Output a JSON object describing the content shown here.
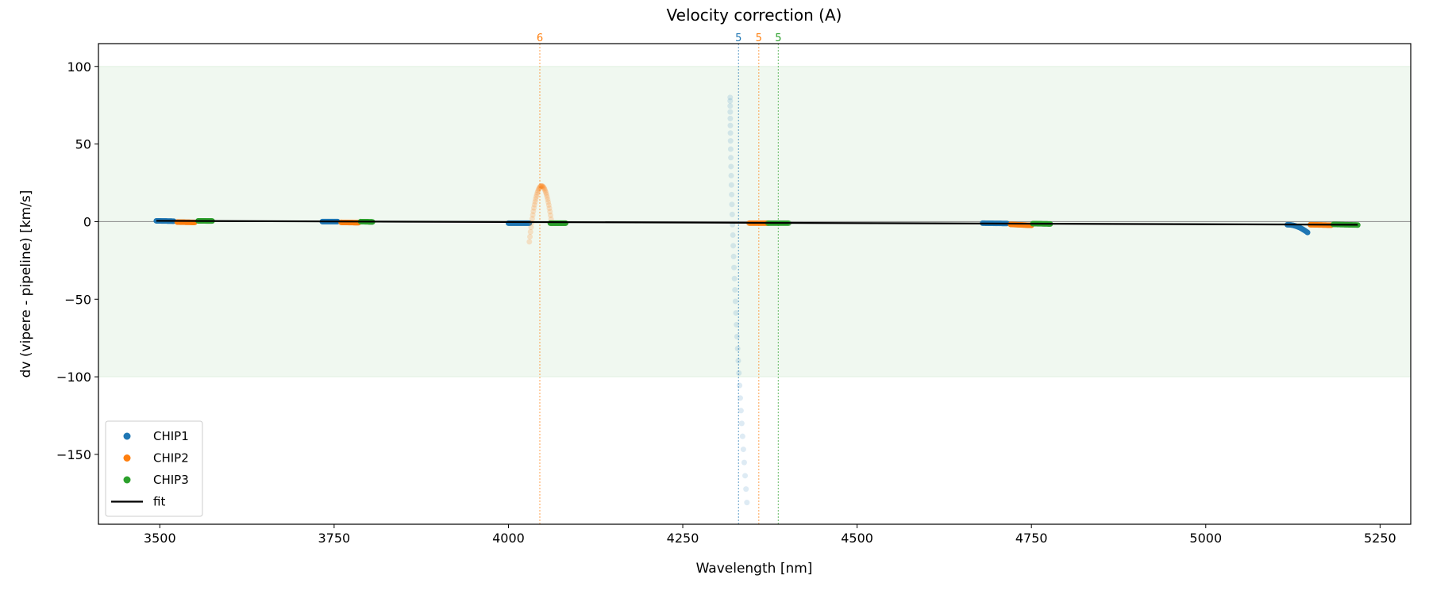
{
  "chart_data": {
    "type": "scatter",
    "title": "Velocity correction (A)",
    "xlabel": "Wavelength [nm]",
    "ylabel": "dv (vipere - pipeline) [km/s]",
    "xlim": [
      3412,
      5294
    ],
    "ylim": [
      -195,
      114.7
    ],
    "xticks": [
      3500,
      3750,
      4000,
      4250,
      4500,
      4750,
      5000,
      5250
    ],
    "yticks": [
      100,
      50,
      0,
      -50,
      -100,
      -150
    ],
    "tick_labels_x": [
      "3500",
      "3750",
      "4000",
      "4250",
      "4500",
      "4750",
      "5000",
      "5250"
    ],
    "tick_labels_y": [
      "100",
      "50",
      "0",
      "−50",
      "−100",
      "−150"
    ],
    "band": [
      -100,
      100
    ],
    "band_color": "#2ca02c",
    "legend": {
      "placement": "lower-left",
      "entries": [
        "CHIP1",
        "CHIP2",
        "CHIP3",
        "fit"
      ]
    },
    "series": [
      {
        "name": "CHIP1",
        "color": "#1f77b4",
        "segments": [
          {
            "x": [
              3495,
              3520
            ],
            "y": [
              0.5,
              0.3
            ],
            "alpha": 1
          },
          {
            "x": [
              3733,
              3755
            ],
            "y": [
              0,
              0
            ],
            "alpha": 1
          },
          {
            "x": [
              4000,
              4030
            ],
            "y": [
              -1,
              -1
            ],
            "alpha": 1
          },
          {
            "x": [
              4318,
              4342
            ],
            "y": [
              80,
              -181
            ],
            "alpha": 0.15,
            "shape": "dip"
          },
          {
            "x": [
              4680,
              4715
            ],
            "y": [
              -1,
              -1.2
            ],
            "alpha": 1
          },
          {
            "x": [
              5117,
              5146
            ],
            "y": [
              -2,
              -7
            ],
            "alpha": 1,
            "shape": "curve-down"
          }
        ]
      },
      {
        "name": "CHIP2",
        "color": "#ff7f0e",
        "segments": [
          {
            "x": [
              3525,
              3550
            ],
            "y": [
              -0.3,
              -0.5
            ],
            "alpha": 1
          },
          {
            "x": [
              3760,
              3785
            ],
            "y": [
              -0.5,
              -0.7
            ],
            "alpha": 1
          },
          {
            "x": [
              4030,
              4062
            ],
            "y": [
              -13,
              23
            ],
            "alpha": 0.2,
            "shape": "arc"
          },
          {
            "x": [
              4345,
              4372
            ],
            "y": [
              -1,
              -1
            ],
            "alpha": 0.6
          },
          {
            "x": [
              4720,
              4750
            ],
            "y": [
              -1.8,
              -2.4
            ],
            "alpha": 1
          },
          {
            "x": [
              5150,
              5180
            ],
            "y": [
              -2,
              -2.3
            ],
            "alpha": 1
          }
        ]
      },
      {
        "name": "CHIP3",
        "color": "#2ca02c",
        "segments": [
          {
            "x": [
              3555,
              3575
            ],
            "y": [
              0.5,
              0.4
            ],
            "alpha": 1
          },
          {
            "x": [
              3788,
              3805
            ],
            "y": [
              0,
              -0.2
            ],
            "alpha": 1
          },
          {
            "x": [
              4060,
              4082
            ],
            "y": [
              -1,
              -1
            ],
            "alpha": 1
          },
          {
            "x": [
              4372,
              4402
            ],
            "y": [
              -1,
              -1
            ],
            "alpha": 0.6
          },
          {
            "x": [
              4752,
              4777
            ],
            "y": [
              -1.3,
              -1.5
            ],
            "alpha": 1
          },
          {
            "x": [
              5183,
              5218
            ],
            "y": [
              -1.8,
              -2.2
            ],
            "alpha": 1
          }
        ]
      }
    ],
    "fit": {
      "name": "fit",
      "x": [
        3495,
        5218
      ],
      "y": [
        0.5,
        -2.0
      ]
    },
    "markers": [
      {
        "x": 4045,
        "label": "6",
        "color": "#ff7f0e"
      },
      {
        "x": 4330,
        "label": "5",
        "color": "#1f77b4"
      },
      {
        "x": 4359,
        "label": "5",
        "color": "#ff7f0e"
      },
      {
        "x": 4387,
        "label": "5",
        "color": "#2ca02c"
      }
    ]
  }
}
